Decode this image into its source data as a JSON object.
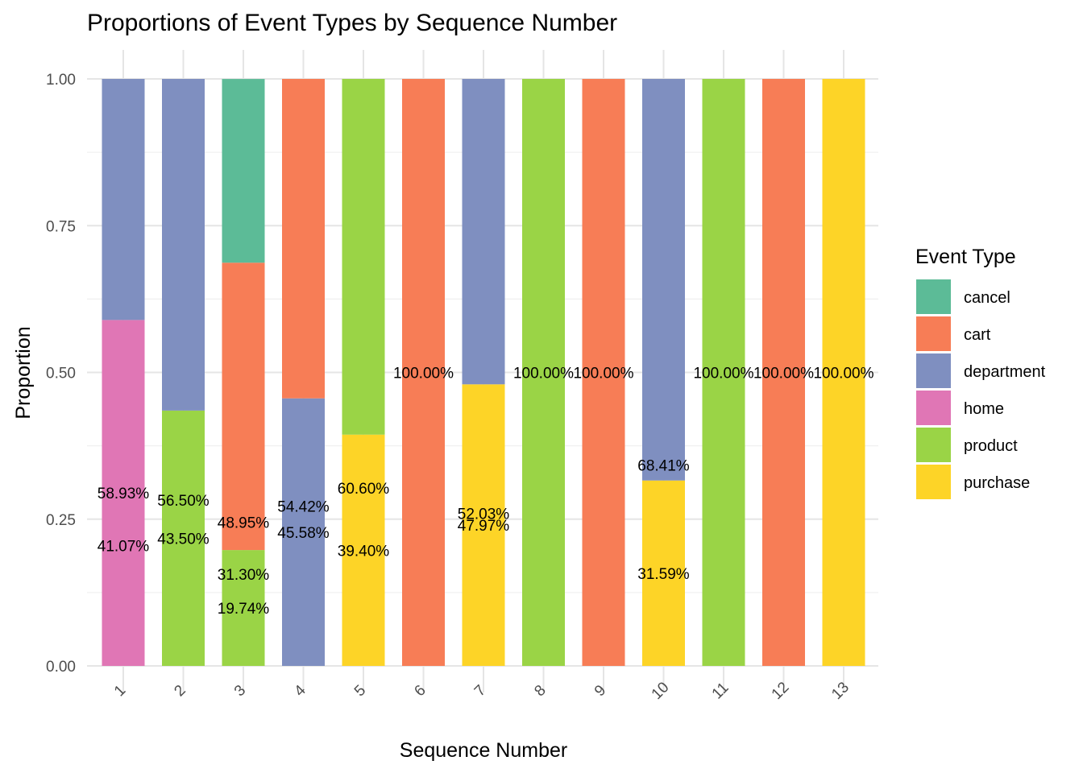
{
  "chart_data": {
    "type": "bar",
    "stacked": true,
    "title": "Proportions of Event Types by Sequence Number",
    "xlabel": "Sequence Number",
    "ylabel": "Proportion",
    "ylim": [
      0,
      1
    ],
    "yticks": [
      0,
      0.25,
      0.5,
      0.75,
      1
    ],
    "ytick_labels": [
      "0.00",
      "0.25",
      "0.50",
      "0.75",
      "1.00"
    ],
    "categories": [
      "1",
      "2",
      "3",
      "4",
      "5",
      "6",
      "7",
      "8",
      "9",
      "10",
      "11",
      "12",
      "13"
    ],
    "legend_title": "Event Type",
    "legend_position": "right",
    "series": [
      {
        "name": "cancel",
        "color": "#5CBB97",
        "values": [
          0,
          0,
          0.313,
          0,
          0,
          0,
          0,
          0,
          0,
          0,
          0,
          0,
          0
        ]
      },
      {
        "name": "cart",
        "color": "#F77D56",
        "values": [
          0,
          0,
          0.4895,
          0.5442,
          0,
          1.0,
          0,
          0,
          1.0,
          0,
          0,
          1.0,
          0
        ]
      },
      {
        "name": "department",
        "color": "#7F8FC0",
        "values": [
          0.4107,
          0.565,
          0,
          0.4558,
          0,
          0,
          0.5203,
          0,
          0,
          0.6841,
          0,
          0,
          0
        ]
      },
      {
        "name": "home",
        "color": "#E076B5",
        "values": [
          0.5893,
          0,
          0,
          0,
          0,
          0,
          0,
          0,
          0,
          0,
          0,
          0,
          0
        ]
      },
      {
        "name": "product",
        "color": "#9AD446",
        "values": [
          0,
          0.435,
          0.1974,
          0,
          0.606,
          0,
          0,
          1.0,
          0,
          0,
          1.0,
          0,
          0
        ]
      },
      {
        "name": "purchase",
        "color": "#FDD427",
        "values": [
          0,
          0,
          0,
          0,
          0.394,
          0,
          0.4797,
          0,
          0,
          0.3159,
          0,
          0,
          1.0
        ]
      }
    ]
  }
}
